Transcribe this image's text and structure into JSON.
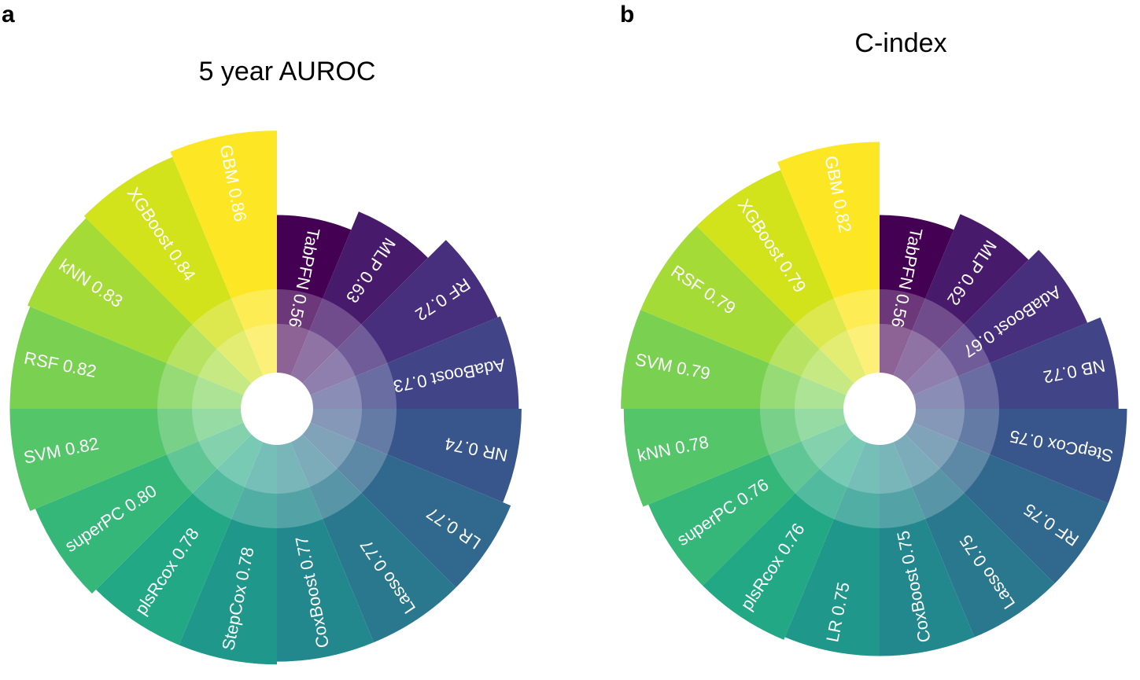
{
  "chart_data": [
    {
      "type": "radial-bar",
      "panel_label": "a",
      "title": "5 year AUROC",
      "categories": [
        "TabPFN",
        "MLP",
        "RF",
        "AdaBoost",
        "NR",
        "LR",
        "Lasso",
        "CoxBoost",
        "StepCox",
        "plsRcox",
        "superPC",
        "SVM",
        "RSF",
        "kNN",
        "XGBoost",
        "GBM"
      ],
      "values": [
        0.56,
        0.63,
        0.72,
        0.73,
        0.74,
        0.77,
        0.77,
        0.77,
        0.78,
        0.78,
        0.8,
        0.82,
        0.82,
        0.83,
        0.84,
        0.86
      ],
      "value_labels": [
        "0.56",
        "0.63",
        "0.72",
        "0.73",
        "0.74",
        "0.77",
        "0.77",
        "0.77",
        "0.78",
        "0.78",
        "0.80",
        "0.82",
        "0.82",
        "0.83",
        "0.84",
        "0.86"
      ],
      "colors": [
        "#440154",
        "#481a6c",
        "#472f7d",
        "#414487",
        "#39568c",
        "#31688e",
        "#2a788e",
        "#23888e",
        "#1f988b",
        "#22a884",
        "#35b779",
        "#54c568",
        "#7ad151",
        "#a5db36",
        "#d2e21b",
        "#fde725"
      ]
    },
    {
      "type": "radial-bar",
      "panel_label": "b",
      "title": "C-index",
      "categories": [
        "TabPFN",
        "MLP",
        "AdaBoost",
        "NB",
        "StepCox",
        "RF",
        "Lasso",
        "CoxBoost",
        "LR",
        "plsRcox",
        "superPC",
        "kNN",
        "SVM",
        "RSF",
        "XGBoost",
        "GBM"
      ],
      "values": [
        0.56,
        0.62,
        0.67,
        0.72,
        0.75,
        0.75,
        0.75,
        0.75,
        0.75,
        0.76,
        0.76,
        0.78,
        0.79,
        0.79,
        0.79,
        0.82
      ],
      "value_labels": [
        "0.56",
        "0.62",
        "0.67",
        "0.72",
        "0.75",
        "0.75",
        "0.75",
        "0.75",
        "0.75",
        "0.76",
        "0.76",
        "0.78",
        "0.79",
        "0.79",
        "0.79",
        "0.82"
      ],
      "colors": [
        "#440154",
        "#481a6c",
        "#472f7d",
        "#414487",
        "#39568c",
        "#31688e",
        "#2a788e",
        "#23888e",
        "#1f988b",
        "#22a884",
        "#35b779",
        "#54c568",
        "#7ad151",
        "#a5db36",
        "#d2e21b",
        "#fde725"
      ]
    }
  ]
}
